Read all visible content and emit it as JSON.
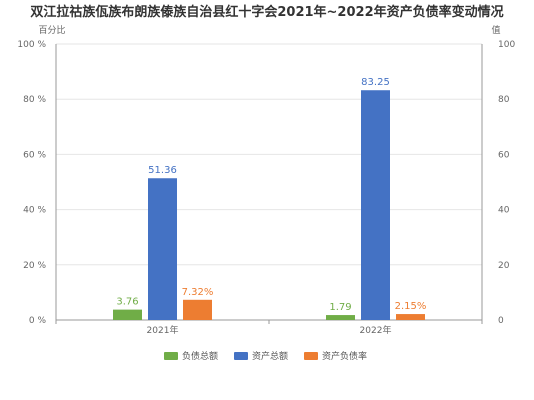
{
  "chart_data": {
    "type": "bar",
    "title": "双江拉祜族佤族布朗族傣族自治县红十字会2021年~2022年资产负债率变动情况",
    "categories": [
      "2021年",
      "2022年"
    ],
    "y_left": {
      "name": "百分比",
      "range": [
        0,
        100
      ],
      "ticks": [
        "0 %",
        "20 %",
        "40 %",
        "60 %",
        "80 %",
        "100 %"
      ]
    },
    "y_right": {
      "name": "值",
      "range": [
        0,
        100
      ],
      "ticks": [
        "0",
        "20",
        "40",
        "60",
        "80",
        "100"
      ]
    },
    "series": [
      {
        "name": "负债总额",
        "color": "#70ad47",
        "axis": "right",
        "values": [
          3.76,
          1.79
        ],
        "labels": [
          "3.76",
          "1.79"
        ]
      },
      {
        "name": "资产总额",
        "color": "#4472c4",
        "axis": "right",
        "values": [
          51.36,
          83.25
        ],
        "labels": [
          "51.36",
          "83.25"
        ]
      },
      {
        "name": "资产负债率",
        "color": "#ed7d31",
        "axis": "left",
        "values": [
          7.32,
          2.15
        ],
        "labels": [
          "7.32%",
          "2.15%"
        ]
      }
    ],
    "grid": true,
    "legend": "bottom"
  }
}
